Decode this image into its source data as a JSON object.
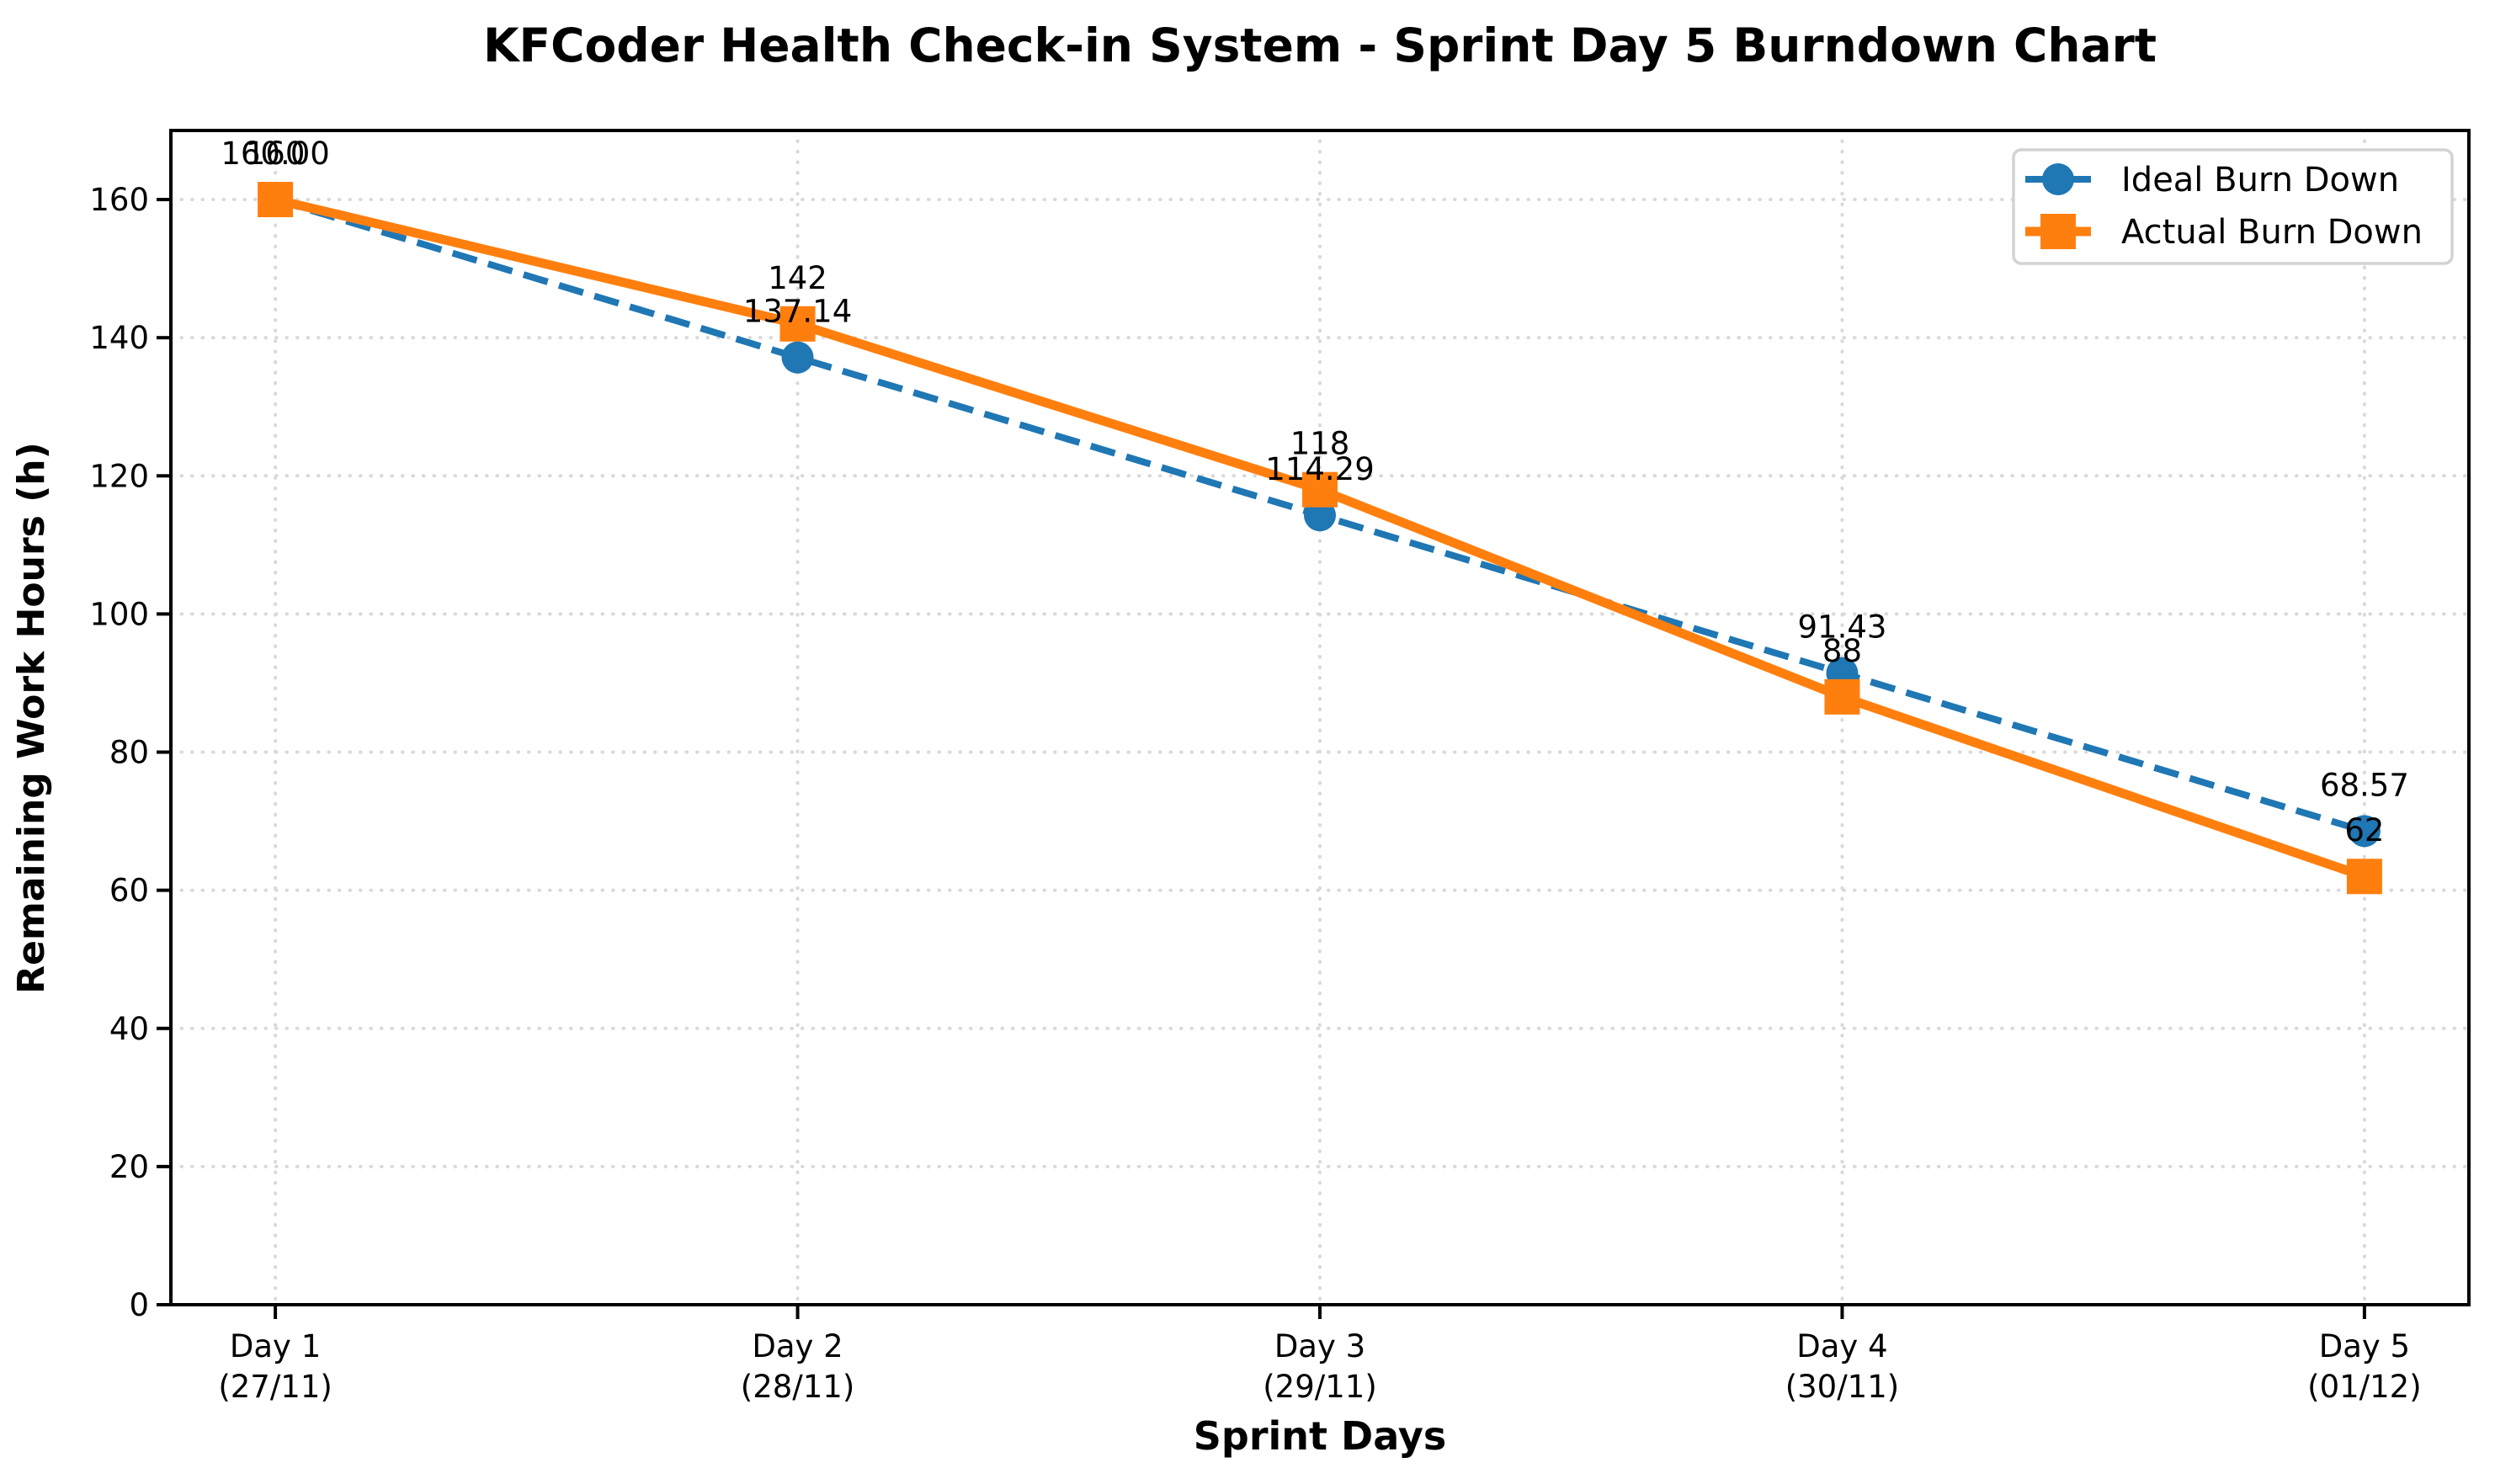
{
  "title": "KFCoder Health Check-in System - Sprint Day 5 Burndown Chart",
  "chart_data": {
    "type": "line",
    "categories": [
      "Day 1\n(27/11)",
      "Day 2\n(28/11)",
      "Day 3\n(29/11)",
      "Day 4\n(30/11)",
      "Day 5\n(01/12)"
    ],
    "series": [
      {
        "name": "Ideal Burn Down",
        "values": [
          160.0,
          137.14,
          114.29,
          91.43,
          68.57
        ],
        "point_labels": [
          "160.00",
          "137.14",
          "114.29",
          "91.43",
          "68.57"
        ],
        "color": "#1f77b4",
        "line_style": "dashed",
        "marker": "circle"
      },
      {
        "name": "Actual Burn Down",
        "values": [
          160,
          142,
          118,
          88,
          62
        ],
        "point_labels": [
          "160",
          "142",
          "118",
          "88",
          "62"
        ],
        "color": "#ff7f0e",
        "line_style": "solid",
        "marker": "square"
      }
    ],
    "xlabel": "Sprint Days",
    "ylabel": "Remaining Work Hours (h)",
    "ylim": [
      0,
      170
    ],
    "yticks": [
      0,
      20,
      40,
      60,
      80,
      100,
      120,
      140,
      160
    ],
    "grid": "dotted",
    "legend_position": "upper right"
  },
  "colors": {
    "ideal": "#1f77b4",
    "actual": "#ff7f0e",
    "grid": "#d9d9d9",
    "spine": "#000000",
    "tick_text": "#000000",
    "legend_border": "#d3d3d3",
    "background": "#ffffff"
  }
}
